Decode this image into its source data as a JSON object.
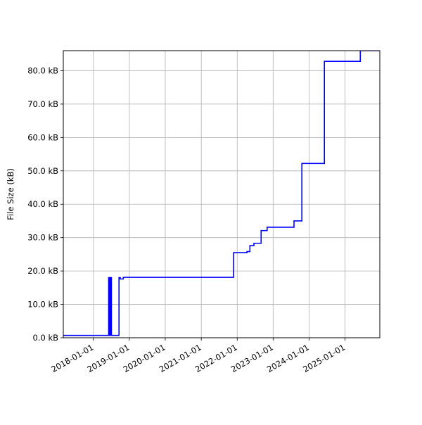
{
  "chart_data": {
    "type": "line",
    "title": "",
    "xlabel": "",
    "ylabel": "File Size (kB)",
    "x_type": "date",
    "xlim": [
      "2017-03-01",
      "2025-12-20"
    ],
    "ylim": [
      0,
      86.0
    ],
    "grid": true,
    "legend": "none",
    "x_ticks": [
      "2018-01-01",
      "2019-01-01",
      "2020-01-01",
      "2021-01-01",
      "2022-01-01",
      "2023-01-01",
      "2024-01-01",
      "2025-01-01"
    ],
    "y_ticks": [
      0,
      10,
      20,
      30,
      40,
      50,
      60,
      70,
      80
    ],
    "y_tick_labels": [
      "0.0 kB",
      "10.0 kB",
      "20.0 kB",
      "30.0 kB",
      "40.0 kB",
      "50.0 kB",
      "60.0 kB",
      "70.0 kB",
      "80.0 kB"
    ],
    "series": [
      {
        "color": "#0000ff",
        "step": "post",
        "points": [
          [
            "2017-03-01",
            0.7
          ],
          [
            "2018-06-01",
            0.7
          ],
          [
            "2018-06-05",
            18.0
          ],
          [
            "2018-06-09",
            0.7
          ],
          [
            "2018-06-13",
            18.0
          ],
          [
            "2018-06-17",
            0.7
          ],
          [
            "2018-06-21",
            18.0
          ],
          [
            "2018-06-25",
            0.7
          ],
          [
            "2018-06-29",
            18.0
          ],
          [
            "2018-07-03",
            0.7
          ],
          [
            "2018-09-18",
            18.0
          ],
          [
            "2018-10-01",
            17.6
          ],
          [
            "2018-11-01",
            18.1
          ],
          [
            "2021-11-25",
            25.5
          ],
          [
            "2022-04-10",
            25.8
          ],
          [
            "2022-05-10",
            27.6
          ],
          [
            "2022-06-20",
            28.3
          ],
          [
            "2022-09-01",
            32.1
          ],
          [
            "2022-11-01",
            33.1
          ],
          [
            "2023-08-01",
            35.0
          ],
          [
            "2023-10-20",
            52.2
          ],
          [
            "2024-06-05",
            82.8
          ],
          [
            "2025-06-05",
            86.0
          ]
        ]
      }
    ]
  }
}
